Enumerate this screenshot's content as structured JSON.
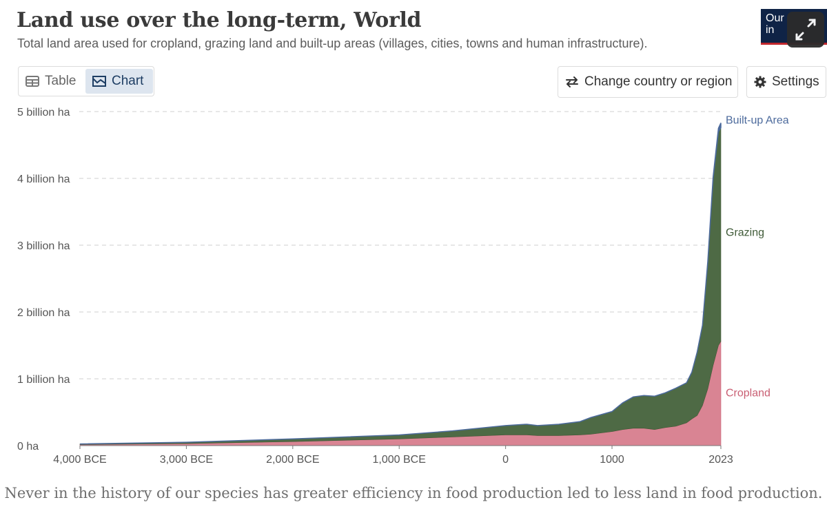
{
  "header": {
    "title": "Land use over the long-term, World",
    "subtitle": "Total land area used for cropland, grazing land and built-up areas (villages, cities, towns and human infrastructure).",
    "logo_text": "Our in"
  },
  "tabs": [
    {
      "label": "Table",
      "icon": "table-icon",
      "active": false
    },
    {
      "label": "Chart",
      "icon": "chart-icon",
      "active": true
    }
  ],
  "controls": {
    "change_country_label": "Change country or region",
    "settings_label": "Settings"
  },
  "colors": {
    "cropland": "#c95f73",
    "cropland_fill": "#d98493",
    "grazing": "#4e6a45",
    "builtup": "#4c6a9c",
    "accent": "#1d3d63"
  },
  "chart_data": {
    "type": "area",
    "stacked": true,
    "x_tick_labels": [
      "4,000 BCE",
      "3,000 BCE",
      "2,000 BCE",
      "1,000 BCE",
      "0",
      "1000",
      "2023"
    ],
    "x_tick_values": [
      -4000,
      -3000,
      -2000,
      -1000,
      0,
      1000,
      2023
    ],
    "y_tick_labels": [
      "0 ha",
      "1 billion ha",
      "2 billion ha",
      "3 billion ha",
      "4 billion ha",
      "5 billion ha"
    ],
    "y_tick_values": [
      0,
      1,
      2,
      3,
      4,
      5
    ],
    "ylim": [
      0,
      5
    ],
    "xlim": [
      -4000,
      2023
    ],
    "grid": true,
    "x": [
      -4000,
      -3000,
      -2000,
      -1000,
      -500,
      0,
      200,
      300,
      500,
      700,
      800,
      1000,
      1100,
      1200,
      1300,
      1400,
      1500,
      1600,
      1700,
      1750,
      1800,
      1850,
      1900,
      1950,
      2000,
      2023
    ],
    "series": [
      {
        "name": "Cropland",
        "values": [
          0.015,
          0.03,
          0.06,
          0.1,
          0.13,
          0.16,
          0.16,
          0.15,
          0.15,
          0.16,
          0.17,
          0.21,
          0.24,
          0.26,
          0.26,
          0.24,
          0.27,
          0.29,
          0.34,
          0.4,
          0.45,
          0.6,
          0.85,
          1.2,
          1.5,
          1.56
        ]
      },
      {
        "name": "Grazing",
        "values": [
          0.01,
          0.02,
          0.04,
          0.06,
          0.09,
          0.14,
          0.16,
          0.15,
          0.17,
          0.2,
          0.25,
          0.3,
          0.4,
          0.47,
          0.49,
          0.5,
          0.52,
          0.57,
          0.6,
          0.7,
          0.95,
          1.2,
          1.9,
          2.8,
          3.2,
          3.2
        ]
      },
      {
        "name": "Built-up Area",
        "values": [
          0,
          0,
          0,
          0,
          0,
          0,
          0,
          0,
          0,
          0,
          0,
          0,
          0,
          0,
          0,
          0,
          0,
          0,
          0,
          0,
          0,
          0,
          0.01,
          0.02,
          0.05,
          0.07
        ]
      }
    ],
    "legend_placement": "right-inline"
  },
  "caption": "Never in the history of our species has greater efficiency in food production led to less land in food production."
}
